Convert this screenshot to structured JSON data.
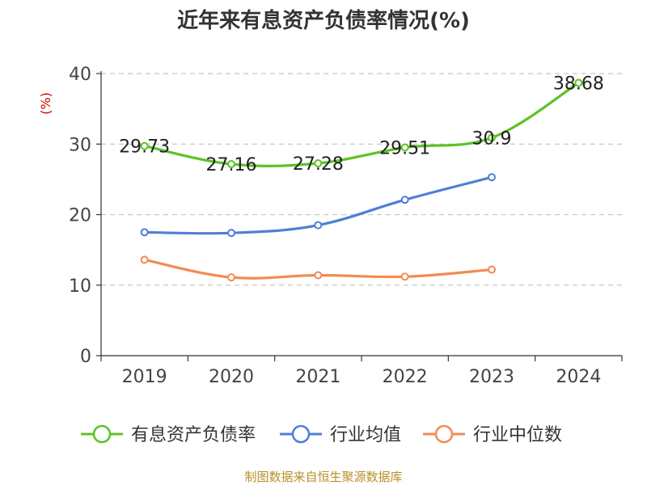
{
  "chart_data": {
    "type": "line",
    "title": "近年来有息资产负债率情况(%)",
    "unit": "(%)",
    "categories": [
      "2019",
      "2020",
      "2021",
      "2022",
      "2023",
      "2024"
    ],
    "ylim": [
      0,
      40
    ],
    "yticks": [
      0,
      10,
      20,
      30,
      40
    ],
    "grid": true,
    "legend_position": "bottom",
    "series": [
      {
        "name": "有息资产负债率",
        "color": "#5cc226",
        "values": [
          29.73,
          27.16,
          27.28,
          29.51,
          30.9,
          38.68
        ],
        "labels": [
          "29.73",
          "27.16",
          "27.28",
          "29.51",
          "30.9",
          "38.68"
        ]
      },
      {
        "name": "行业均值",
        "color": "#4f7fd6",
        "values": [
          17.5,
          17.4,
          18.5,
          22.1,
          25.3,
          null
        ]
      },
      {
        "name": "行业中位数",
        "color": "#f28b54",
        "values": [
          13.6,
          11.1,
          11.4,
          11.2,
          12.2,
          null
        ]
      }
    ],
    "source": "制图数据来自恒生聚源数据库"
  }
}
